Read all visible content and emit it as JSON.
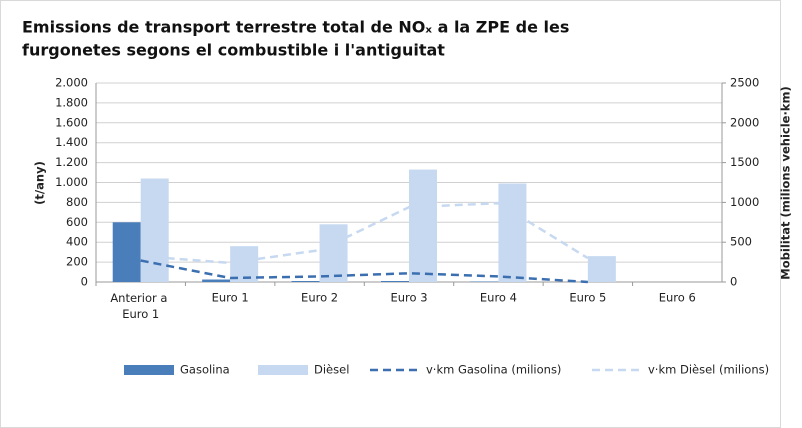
{
  "chart_data": {
    "type": "bar",
    "title": [
      "Emissions de transport terrestre total de NOₓ a la ZPE de les",
      "furgonetes segons el combustible i l'antiguitat"
    ],
    "y_label": "(t/any)",
    "y2_label": "Mobilitat (milions vehicle·km)",
    "categories": [
      "Anterior a Euro 1",
      "Euro 1",
      "Euro 2",
      "Euro 3",
      "Euro 4",
      "Euro 5",
      "Euro 6"
    ],
    "series": [
      {
        "name": "Gasolina",
        "type": "bar",
        "color": "#4a7ebb",
        "values": [
          600,
          25,
          10,
          10,
          5,
          0,
          null
        ]
      },
      {
        "name": "Dièsel",
        "type": "bar",
        "color": "#c6d9f1",
        "values": [
          1040,
          360,
          580,
          1130,
          990,
          260,
          null
        ]
      },
      {
        "name": "v·km Gasolina (milions)",
        "type": "line",
        "axis": "y2",
        "color": "#3c6fb0",
        "values": [
          270,
          50,
          70,
          110,
          70,
          0,
          null
        ]
      },
      {
        "name": "v·km Dièsel (milions)",
        "type": "line",
        "axis": "y2",
        "color": "#c6d9f1",
        "values": [
          325,
          240,
          400,
          940,
          990,
          300,
          null
        ]
      }
    ],
    "ylim": [
      0,
      2000
    ],
    "yticks": [
      0,
      200,
      400,
      600,
      800,
      {
        "value": 1000,
        "label": "1.000"
      },
      {
        "value": 1200,
        "label": "1.200"
      },
      {
        "value": 1400,
        "label": "1.400"
      },
      {
        "value": 1600,
        "label": "1.600"
      },
      {
        "value": 1800,
        "label": "1.800"
      },
      {
        "value": 2000,
        "label": "2.000"
      }
    ],
    "y2lim": [
      0,
      2500
    ],
    "y2ticks": [
      0,
      500,
      1000,
      1500,
      2000,
      2500
    ],
    "grid": true,
    "legend": "bottom"
  }
}
